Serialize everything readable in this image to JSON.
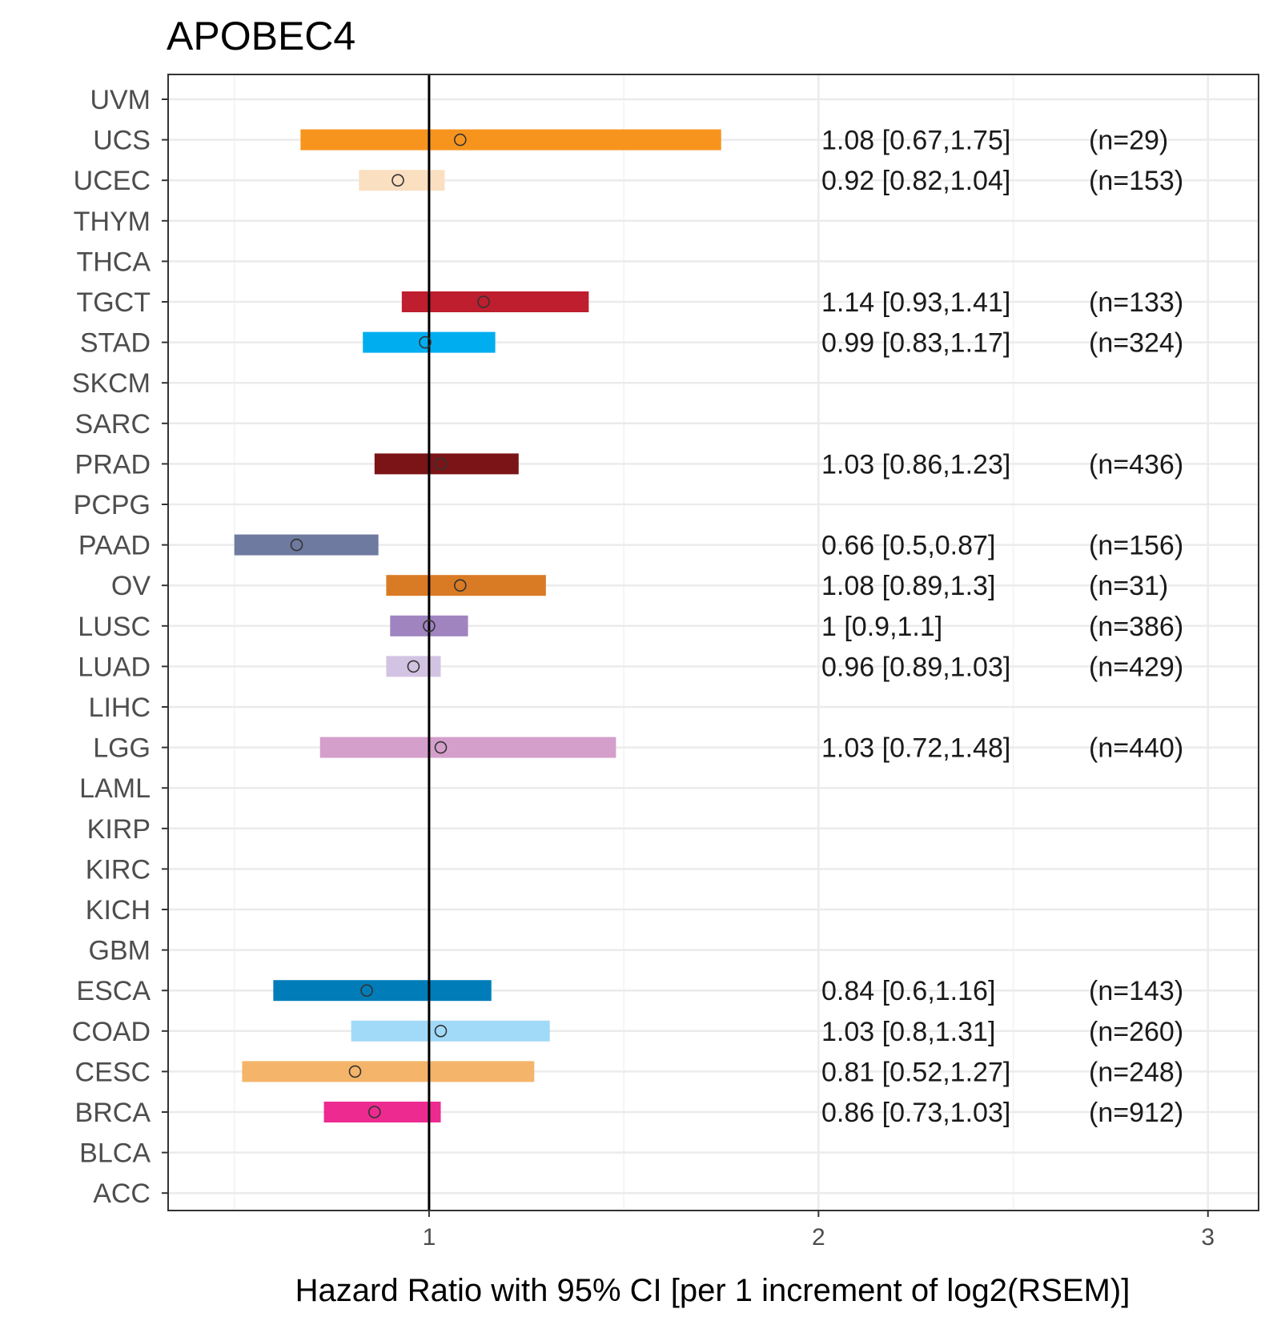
{
  "chart_data": {
    "type": "forest",
    "title": "APOBEC4",
    "xlabel": "Hazard Ratio with 95% CI [per 1 increment of log2(RSEM)]",
    "ylabel": "",
    "xlim": [
      0.33,
      3.13
    ],
    "xticks": [
      1,
      2,
      3
    ],
    "xtick_labels": [
      "1",
      "2",
      "3"
    ],
    "reference_line": 1,
    "grid": true,
    "categories": [
      "UVM",
      "UCS",
      "UCEC",
      "THYM",
      "THCA",
      "TGCT",
      "STAD",
      "SKCM",
      "SARC",
      "PRAD",
      "PCPG",
      "PAAD",
      "OV",
      "LUSC",
      "LUAD",
      "LIHC",
      "LGG",
      "LAML",
      "KIRP",
      "KIRC",
      "KICH",
      "GBM",
      "ESCA",
      "COAD",
      "CESC",
      "BRCA",
      "BLCA",
      "ACC"
    ],
    "rows": [
      {
        "cancer": "UVM",
        "hr": null
      },
      {
        "cancer": "UCS",
        "hr": 1.08,
        "lower": 0.67,
        "upper": 1.75,
        "color": "#F7941D",
        "ci_text": "1.08 [0.67,1.75]",
        "n_text": "(n=29)"
      },
      {
        "cancer": "UCEC",
        "hr": 0.92,
        "lower": 0.82,
        "upper": 1.04,
        "color": "#FBDFC1",
        "ci_text": "0.92 [0.82,1.04]",
        "n_text": "(n=153)"
      },
      {
        "cancer": "THYM",
        "hr": null
      },
      {
        "cancer": "THCA",
        "hr": null
      },
      {
        "cancer": "TGCT",
        "hr": 1.14,
        "lower": 0.93,
        "upper": 1.41,
        "color": "#BE1E2D",
        "ci_text": "1.14 [0.93,1.41]",
        "n_text": "(n=133)"
      },
      {
        "cancer": "STAD",
        "hr": 0.99,
        "lower": 0.83,
        "upper": 1.17,
        "color": "#00AEEF",
        "ci_text": "0.99 [0.83,1.17]",
        "n_text": "(n=324)"
      },
      {
        "cancer": "SKCM",
        "hr": null
      },
      {
        "cancer": "SARC",
        "hr": null
      },
      {
        "cancer": "PRAD",
        "hr": 1.03,
        "lower": 0.86,
        "upper": 1.23,
        "color": "#7A1416",
        "ci_text": "1.03 [0.86,1.23]",
        "n_text": "(n=436)"
      },
      {
        "cancer": "PCPG",
        "hr": null
      },
      {
        "cancer": "PAAD",
        "hr": 0.66,
        "lower": 0.5,
        "upper": 0.87,
        "color": "#6E7AA0",
        "ci_text": "0.66 [0.5,0.87]",
        "n_text": "(n=156)"
      },
      {
        "cancer": "OV",
        "hr": 1.08,
        "lower": 0.89,
        "upper": 1.3,
        "color": "#D97B24",
        "ci_text": "1.08 [0.89,1.3]",
        "n_text": "(n=31)"
      },
      {
        "cancer": "LUSC",
        "hr": 1,
        "lower": 0.9,
        "upper": 1.1,
        "color": "#A084C0",
        "ci_text": "1 [0.9,1.1]",
        "n_text": "(n=386)"
      },
      {
        "cancer": "LUAD",
        "hr": 0.96,
        "lower": 0.89,
        "upper": 1.03,
        "color": "#D3C3E2",
        "ci_text": "0.96 [0.89,1.03]",
        "n_text": "(n=429)"
      },
      {
        "cancer": "LIHC",
        "hr": null
      },
      {
        "cancer": "LGG",
        "hr": 1.03,
        "lower": 0.72,
        "upper": 1.48,
        "color": "#D49FCB",
        "ci_text": "1.03 [0.72,1.48]",
        "n_text": "(n=440)"
      },
      {
        "cancer": "LAML",
        "hr": null
      },
      {
        "cancer": "KIRP",
        "hr": null
      },
      {
        "cancer": "KIRC",
        "hr": null
      },
      {
        "cancer": "KICH",
        "hr": null
      },
      {
        "cancer": "GBM",
        "hr": null
      },
      {
        "cancer": "ESCA",
        "hr": 0.84,
        "lower": 0.6,
        "upper": 1.16,
        "color": "#007DB8",
        "ci_text": "0.84 [0.6,1.16]",
        "n_text": "(n=143)"
      },
      {
        "cancer": "COAD",
        "hr": 1.03,
        "lower": 0.8,
        "upper": 1.31,
        "color": "#A1DAF8",
        "ci_text": "1.03 [0.8,1.31]",
        "n_text": "(n=260)"
      },
      {
        "cancer": "CESC",
        "hr": 0.81,
        "lower": 0.52,
        "upper": 1.27,
        "color": "#F4B469",
        "ci_text": "0.81 [0.52,1.27]",
        "n_text": "(n=248)"
      },
      {
        "cancer": "BRCA",
        "hr": 0.86,
        "lower": 0.73,
        "upper": 1.03,
        "color": "#EC2A90",
        "ci_text": "0.86 [0.73,1.03]",
        "n_text": "(n=912)"
      },
      {
        "cancer": "BLCA",
        "hr": null
      },
      {
        "cancer": "ACC",
        "hr": null
      }
    ]
  }
}
